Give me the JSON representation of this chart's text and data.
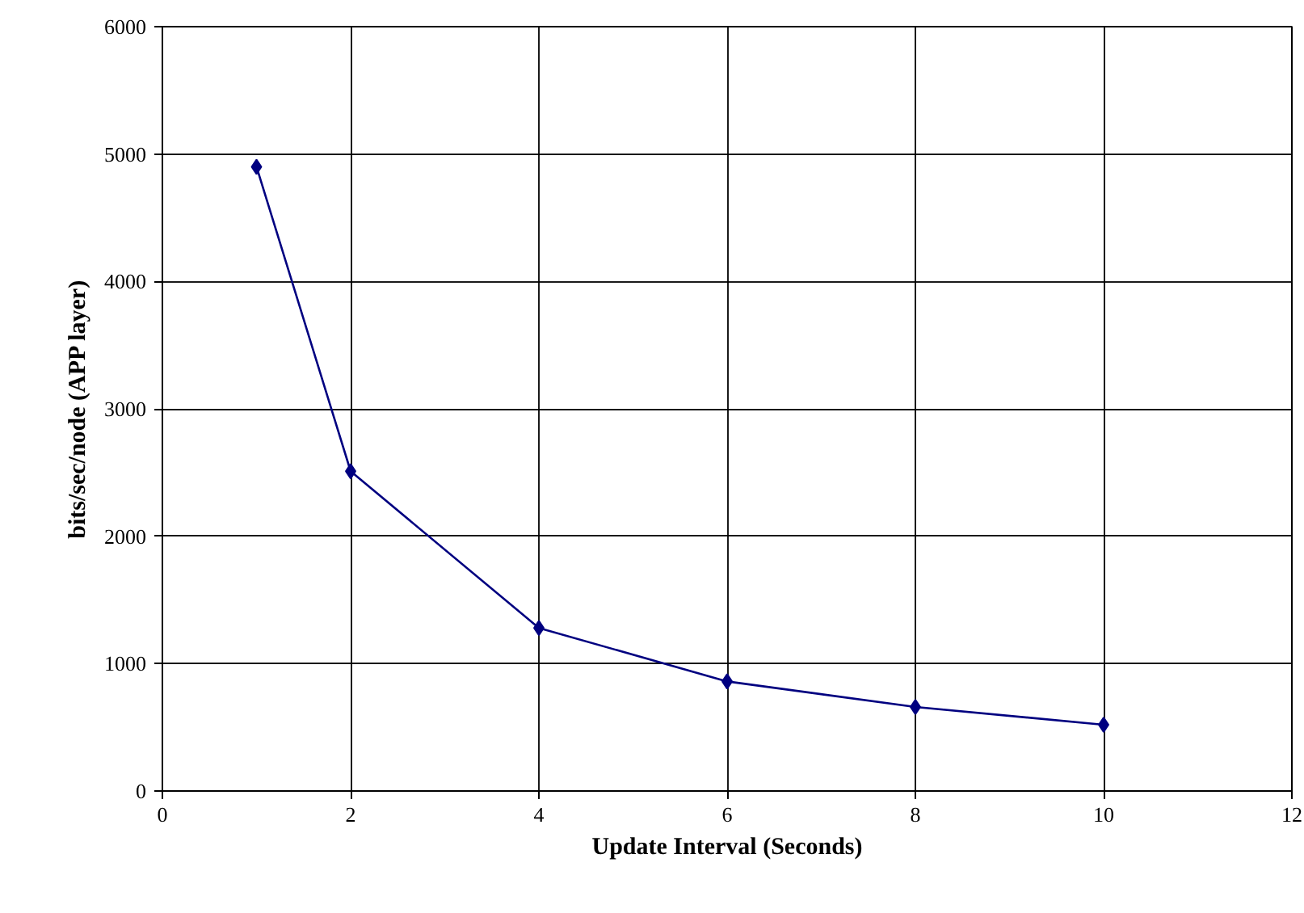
{
  "chart_data": {
    "type": "line",
    "xlabel": "Update Interval (Seconds)",
    "ylabel": "bits/sec/node (APP layer)",
    "x": [
      1,
      2,
      4,
      6,
      8,
      10
    ],
    "series": [
      {
        "color": "#000080",
        "values": [
          4900,
          2510,
          1280,
          860,
          660,
          520
        ]
      }
    ],
    "xlim": [
      0,
      12
    ],
    "xticks": [
      0,
      2,
      4,
      6,
      8,
      10,
      12
    ],
    "ylim": [
      0,
      6000
    ],
    "yticks": [
      0,
      1000,
      2000,
      3000,
      4000,
      5000,
      6000
    ],
    "grid": true,
    "marker": "diamond",
    "line_style": "solid"
  }
}
